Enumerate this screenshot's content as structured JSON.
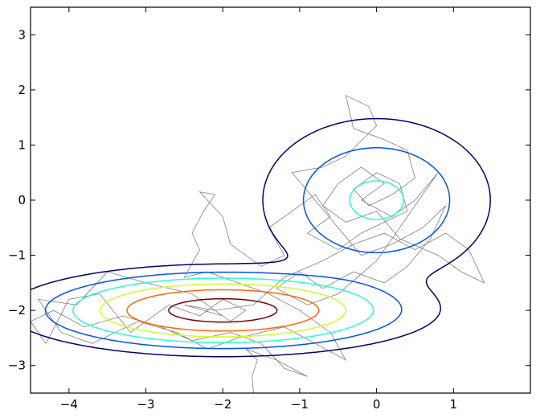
{
  "chart_data": {
    "type": "contour",
    "title": "",
    "xlabel": "",
    "ylabel": "",
    "xlim": [
      -4.5,
      2
    ],
    "ylim": [
      -3.5,
      3.5
    ],
    "grid": false,
    "xticks": [
      -4,
      -3,
      -2,
      -1,
      0,
      1
    ],
    "yticks": [
      -3,
      -2,
      -1,
      0,
      1,
      2,
      3
    ],
    "xtick_labels": [
      "−4",
      "−3",
      "−2",
      "−1",
      "0",
      "1"
    ],
    "ytick_labels": [
      "−3",
      "−2",
      "−1",
      "0",
      "1",
      "2",
      "3"
    ],
    "density": {
      "components": [
        {
          "weight": 1.0,
          "mean": [
            -2,
            -2
          ],
          "sigma": [
            1.0,
            0.3
          ]
        },
        {
          "weight": 0.169,
          "mean": [
            0,
            0
          ],
          "sigma": [
            0.716,
            0.716
          ]
        }
      ]
    },
    "contour_levels": [
      0.02,
      0.07,
      0.15,
      0.28,
      0.46,
      0.78
    ],
    "contour_colors": [
      "#00007f",
      "#0050ff",
      "#29ffce",
      "#ceff29",
      "#ff6800",
      "#7f0000"
    ],
    "trace_color": "#808080",
    "trace": [
      [
        -1.6,
        -3.5
      ],
      [
        -1.62,
        -3.2
      ],
      [
        -1.55,
        -2.9
      ],
      [
        -1.7,
        -2.7
      ],
      [
        -1.3,
        -2.9
      ],
      [
        -0.9,
        -3.2
      ],
      [
        -1.2,
        -3.05
      ],
      [
        -1.5,
        -2.6
      ],
      [
        -1.9,
        -2.4
      ],
      [
        -2.4,
        -2.55
      ],
      [
        -2.8,
        -2.3
      ],
      [
        -3.3,
        -2.1
      ],
      [
        -3.8,
        -2.3
      ],
      [
        -4.2,
        -2.0
      ],
      [
        -4.5,
        -2.2
      ],
      [
        -4.3,
        -2.6
      ],
      [
        -4.0,
        -1.8
      ],
      [
        -3.6,
        -1.7
      ],
      [
        -3.2,
        -2.4
      ],
      [
        -2.7,
        -1.9
      ],
      [
        -2.3,
        -2.1
      ],
      [
        -2.0,
        -1.8
      ],
      [
        -1.7,
        -2.0
      ],
      [
        -1.9,
        -2.2
      ],
      [
        -2.4,
        -1.7
      ],
      [
        -3.0,
        -1.5
      ],
      [
        -3.5,
        -1.3
      ],
      [
        -3.9,
        -1.9
      ],
      [
        -4.4,
        -1.8
      ],
      [
        -4.1,
        -2.4
      ],
      [
        -3.7,
        -2.6
      ],
      [
        -3.1,
        -2.2
      ],
      [
        -2.6,
        -2.4
      ],
      [
        -2.2,
        -2.7
      ],
      [
        -1.8,
        -2.5
      ],
      [
        -1.2,
        -2.3
      ],
      [
        -0.8,
        -2.6
      ],
      [
        -0.4,
        -2.9
      ],
      [
        -0.6,
        -2.4
      ],
      [
        -1.0,
        -2.0
      ],
      [
        -1.4,
        -1.7
      ],
      [
        -1.8,
        -1.5
      ],
      [
        -2.2,
        -1.3
      ],
      [
        -2.5,
        -1.4
      ],
      [
        -2.3,
        -0.9
      ],
      [
        -2.4,
        -0.6
      ],
      [
        -2.25,
        -0.2
      ],
      [
        -2.1,
        0.1
      ],
      [
        -2.3,
        0.15
      ],
      [
        -2.0,
        -0.3
      ],
      [
        -1.9,
        -0.8
      ],
      [
        -1.5,
        -1.2
      ],
      [
        -1.2,
        -1.0
      ],
      [
        -1.4,
        -0.5
      ],
      [
        -1.1,
        -0.2
      ],
      [
        -0.8,
        0.1
      ],
      [
        -0.6,
        -0.3
      ],
      [
        -0.9,
        -0.6
      ],
      [
        -0.5,
        -0.9
      ],
      [
        -0.2,
        -0.6
      ],
      [
        0.1,
        -0.4
      ],
      [
        0.4,
        -0.2
      ],
      [
        0.3,
        0.3
      ],
      [
        0.0,
        0.5
      ],
      [
        -0.3,
        0.2
      ],
      [
        -0.1,
        -0.1
      ],
      [
        0.2,
        0.1
      ],
      [
        0.5,
        0.4
      ],
      [
        0.4,
        0.9
      ],
      [
        0.1,
        1.1
      ],
      [
        -0.3,
        1.3
      ],
      [
        -0.4,
        1.9
      ],
      [
        -0.1,
        1.7
      ],
      [
        0.0,
        1.35
      ],
      [
        -0.4,
        0.8
      ],
      [
        -0.7,
        0.6
      ],
      [
        -1.1,
        0.5
      ],
      [
        -0.8,
        0.0
      ],
      [
        -0.5,
        -0.5
      ],
      [
        -0.2,
        -1.0
      ],
      [
        0.2,
        -0.8
      ],
      [
        0.6,
        -0.5
      ],
      [
        0.9,
        -0.1
      ],
      [
        0.7,
        -0.7
      ],
      [
        0.4,
        -1.2
      ],
      [
        0.1,
        -1.5
      ],
      [
        -0.3,
        -1.3
      ],
      [
        -0.7,
        -1.6
      ],
      [
        -1.0,
        -1.3
      ],
      [
        -1.3,
        -1.6
      ],
      [
        -0.9,
        -1.9
      ],
      [
        -0.5,
        -1.7
      ],
      [
        0.0,
        -1.1
      ],
      [
        0.3,
        -0.5
      ],
      [
        0.6,
        0.1
      ],
      [
        0.8,
        0.5
      ],
      [
        0.5,
        0.0
      ],
      [
        0.2,
        -0.3
      ],
      [
        -0.2,
        0.0
      ],
      [
        0.1,
        0.3
      ],
      [
        -0.2,
        0.6
      ],
      [
        -0.5,
        0.3
      ],
      [
        -0.7,
        -0.1
      ],
      [
        -0.4,
        -0.4
      ],
      [
        0.0,
        -0.2
      ],
      [
        0.3,
        -0.7
      ],
      [
        0.8,
        -1.0
      ],
      [
        1.1,
        -1.3
      ],
      [
        1.4,
        -1.5
      ],
      [
        1.2,
        -0.9
      ],
      [
        0.9,
        -0.6
      ],
      [
        0.5,
        -0.9
      ],
      [
        0.1,
        -0.6
      ],
      [
        -0.3,
        -0.8
      ],
      [
        -0.7,
        -1.1
      ],
      [
        -1.2,
        -1.4
      ],
      [
        -1.6,
        -1.9
      ],
      [
        -2.1,
        -2.0
      ],
      [
        -2.5,
        -1.9
      ],
      [
        -2.0,
        -2.1
      ]
    ]
  }
}
